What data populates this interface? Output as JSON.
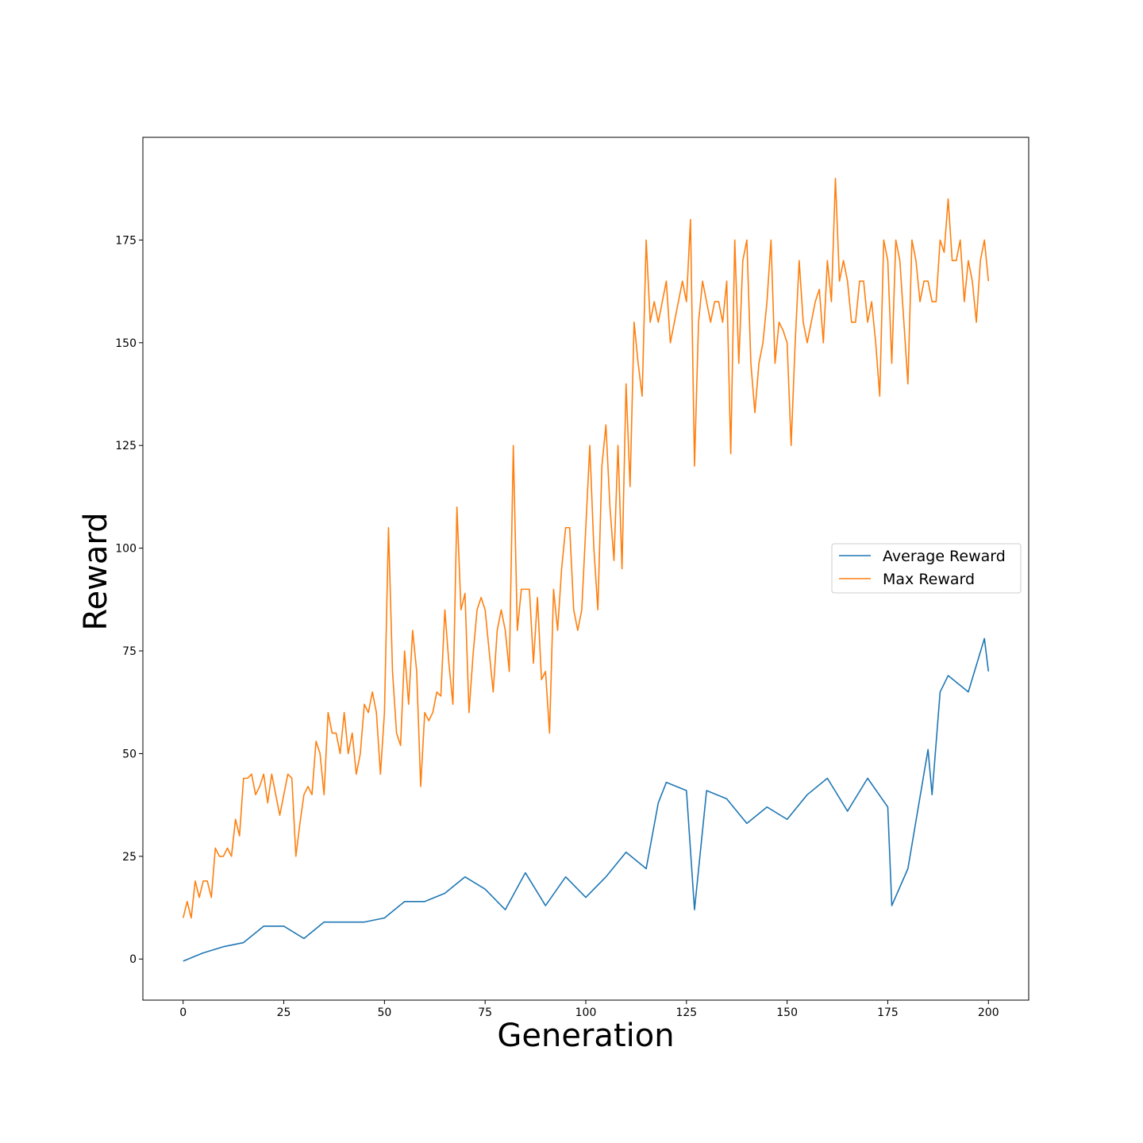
{
  "chart_data": {
    "type": "line",
    "title": "",
    "xlabel": "Generation",
    "ylabel": "Reward",
    "xlim": [
      -10,
      210
    ],
    "ylim": [
      -10,
      200
    ],
    "xticks": [
      0,
      25,
      50,
      75,
      100,
      125,
      150,
      175,
      200
    ],
    "yticks": [
      0,
      25,
      50,
      75,
      100,
      125,
      150,
      175
    ],
    "grid": false,
    "legend": {
      "placement": "center-right"
    },
    "series": [
      {
        "name": "Average Reward",
        "color": "#1f77b4",
        "x": [
          0,
          5,
          10,
          15,
          20,
          25,
          30,
          35,
          40,
          45,
          50,
          55,
          60,
          65,
          70,
          75,
          80,
          85,
          90,
          95,
          100,
          105,
          110,
          115,
          118,
          120,
          125,
          127,
          130,
          135,
          140,
          145,
          150,
          155,
          160,
          165,
          170,
          175,
          176,
          180,
          185,
          186,
          188,
          190,
          195,
          199,
          200
        ],
        "y": [
          -0.5,
          1.5,
          3,
          4,
          8,
          8,
          5,
          9,
          9,
          9,
          10,
          14,
          14,
          16,
          20,
          17,
          12,
          21,
          13,
          20,
          15,
          20,
          26,
          22,
          38,
          43,
          41,
          12,
          41,
          39,
          33,
          37,
          34,
          40,
          44,
          36,
          44,
          37,
          13,
          22,
          51,
          40,
          65,
          69,
          65,
          78,
          70
        ]
      },
      {
        "name": "Max Reward",
        "color": "#ff7f0e",
        "x": [
          0,
          1,
          2,
          3,
          4,
          5,
          6,
          7,
          8,
          9,
          10,
          11,
          12,
          13,
          14,
          15,
          16,
          17,
          18,
          19,
          20,
          21,
          22,
          23,
          24,
          25,
          26,
          27,
          28,
          29,
          30,
          31,
          32,
          33,
          34,
          35,
          36,
          37,
          38,
          39,
          40,
          41,
          42,
          43,
          44,
          45,
          46,
          47,
          48,
          49,
          50,
          51,
          52,
          53,
          54,
          55,
          56,
          57,
          58,
          59,
          60,
          61,
          62,
          63,
          64,
          65,
          66,
          67,
          68,
          69,
          70,
          71,
          72,
          73,
          74,
          75,
          76,
          77,
          78,
          79,
          80,
          81,
          82,
          83,
          84,
          85,
          86,
          87,
          88,
          89,
          90,
          91,
          92,
          93,
          94,
          95,
          96,
          97,
          98,
          99,
          100,
          101,
          102,
          103,
          104,
          105,
          106,
          107,
          108,
          109,
          110,
          111,
          112,
          113,
          114,
          115,
          116,
          117,
          118,
          119,
          120,
          121,
          122,
          123,
          124,
          125,
          126,
          127,
          128,
          129,
          130,
          131,
          132,
          133,
          134,
          135,
          136,
          137,
          138,
          139,
          140,
          141,
          142,
          143,
          144,
          145,
          146,
          147,
          148,
          149,
          150,
          151,
          152,
          153,
          154,
          155,
          156,
          157,
          158,
          159,
          160,
          161,
          162,
          163,
          164,
          165,
          166,
          167,
          168,
          169,
          170,
          171,
          172,
          173,
          174,
          175,
          176,
          177,
          178,
          179,
          180,
          181,
          182,
          183,
          184,
          185,
          186,
          187,
          188,
          189,
          190,
          191,
          192,
          193,
          194,
          195,
          196,
          197,
          198,
          199,
          200
        ],
        "y": [
          10,
          14,
          10,
          19,
          15,
          19,
          19,
          15,
          27,
          25,
          25,
          27,
          25,
          34,
          30,
          44,
          44,
          45,
          40,
          42,
          45,
          38,
          45,
          40,
          35,
          40,
          45,
          44,
          25,
          33,
          40,
          42,
          40,
          53,
          50,
          40,
          60,
          55,
          55,
          50,
          60,
          50,
          55,
          45,
          50,
          62,
          60,
          65,
          60,
          45,
          60,
          105,
          70,
          55,
          52,
          75,
          62,
          80,
          70,
          42,
          60,
          58,
          60,
          65,
          64,
          85,
          72,
          62,
          110,
          85,
          89,
          60,
          74,
          85,
          88,
          85,
          75,
          65,
          80,
          85,
          80,
          70,
          125,
          80,
          90,
          90,
          90,
          72,
          88,
          68,
          70,
          55,
          90,
          80,
          95,
          105,
          105,
          85,
          80,
          85,
          105,
          125,
          100,
          85,
          120,
          130,
          110,
          97,
          125,
          95,
          140,
          115,
          155,
          145,
          137,
          175,
          155,
          160,
          155,
          160,
          165,
          150,
          155,
          160,
          165,
          160,
          180,
          120,
          155,
          165,
          160,
          155,
          160,
          160,
          155,
          165,
          123,
          175,
          145,
          170,
          175,
          145,
          133,
          145,
          150,
          160,
          175,
          145,
          155,
          153,
          150,
          125,
          150,
          170,
          155,
          150,
          155,
          160,
          163,
          150,
          170,
          160,
          190,
          165,
          170,
          165,
          155,
          155,
          165,
          165,
          155,
          160,
          150,
          137,
          175,
          170,
          145,
          175,
          170,
          155,
          140,
          175,
          170,
          160,
          165,
          165,
          160,
          160,
          175,
          172,
          185,
          170,
          170,
          175,
          160,
          170,
          165,
          155,
          170,
          175,
          165
        ]
      }
    ]
  }
}
